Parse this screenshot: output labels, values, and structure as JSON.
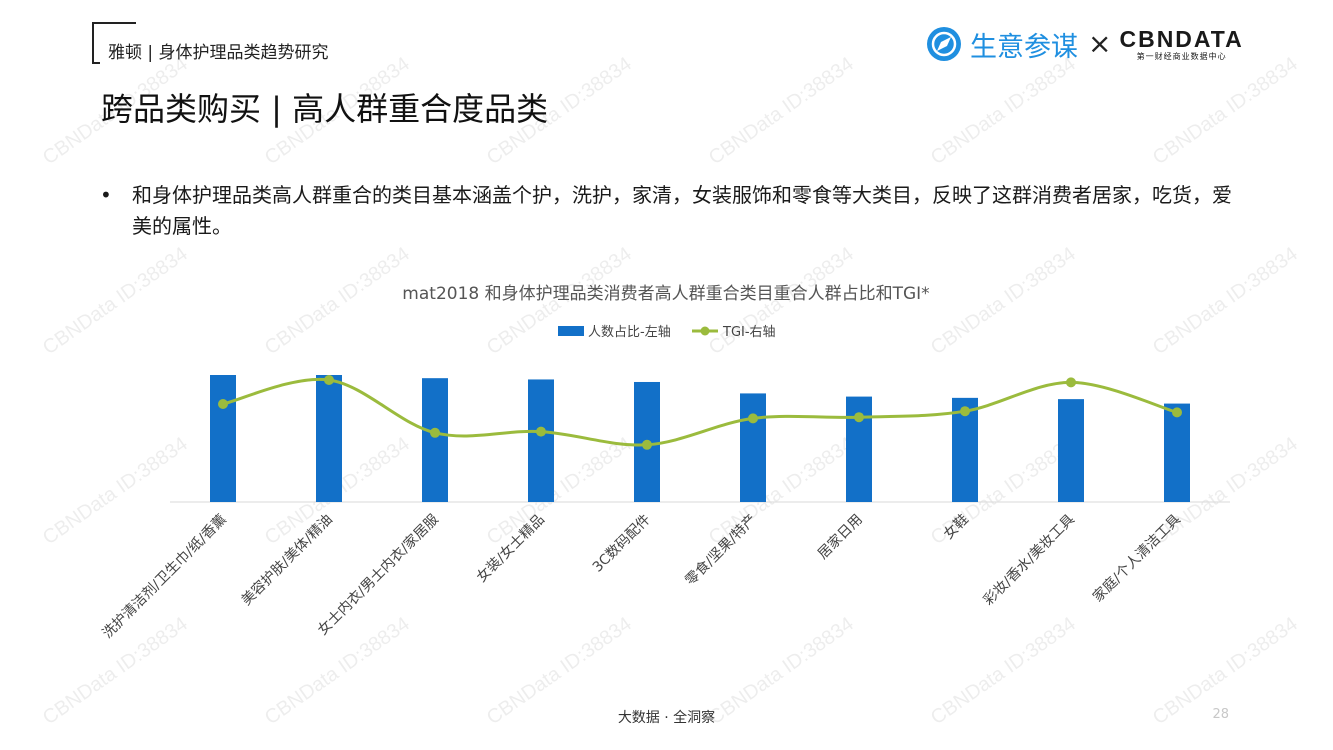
{
  "header": {
    "report_label": "雅顿 | 身体护理品类趋势研究",
    "page_title": "跨品类购买 | 高人群重合度品类"
  },
  "logo": {
    "text": "生意参谋",
    "separator": "×",
    "partner": "CBNDATA",
    "partner_sub": "第一财经商业数据中心"
  },
  "bullet_text": "和身体护理品类高人群重合的类目基本涵盖个护，洗护，家清，女装服饰和零食等大类目，反映了这群消费者居家，吃货，爱美的属性。",
  "chart_data": {
    "type": "bar",
    "title": "mat2018 和身体护理品类消费者高人群重合类目重合人群占比和TGI*",
    "categories": [
      "洗护清洁剂/卫生巾/纸/香薰",
      "美容护肤/美体/精油",
      "女士内衣/男士内衣/家居服",
      "女装/女士精品",
      "3C数码配件",
      "零食/坚果/特产",
      "居家日用",
      "女鞋",
      "彩妆/香水/美妆工具",
      "家庭/个人清洁工具"
    ],
    "series": [
      {
        "name": "人数占比-左轴",
        "type": "bar",
        "axis": "left",
        "color": "#1270c8",
        "values": [
          100,
          100,
          97.5,
          96.5,
          94.5,
          85.5,
          83,
          82,
          81,
          77.5
        ]
      },
      {
        "name": "TGI-右轴",
        "type": "line",
        "axis": "right",
        "color": "#9bbb3d",
        "values": [
          80,
          100,
          56,
          57,
          46,
          68,
          69,
          74,
          98,
          73
        ]
      }
    ],
    "legend_position": "top-center",
    "grid": false
  },
  "footer": {
    "text": "大数据 · 全洞察",
    "page_number": "28"
  },
  "watermark_text": "CBNData ID:38834"
}
